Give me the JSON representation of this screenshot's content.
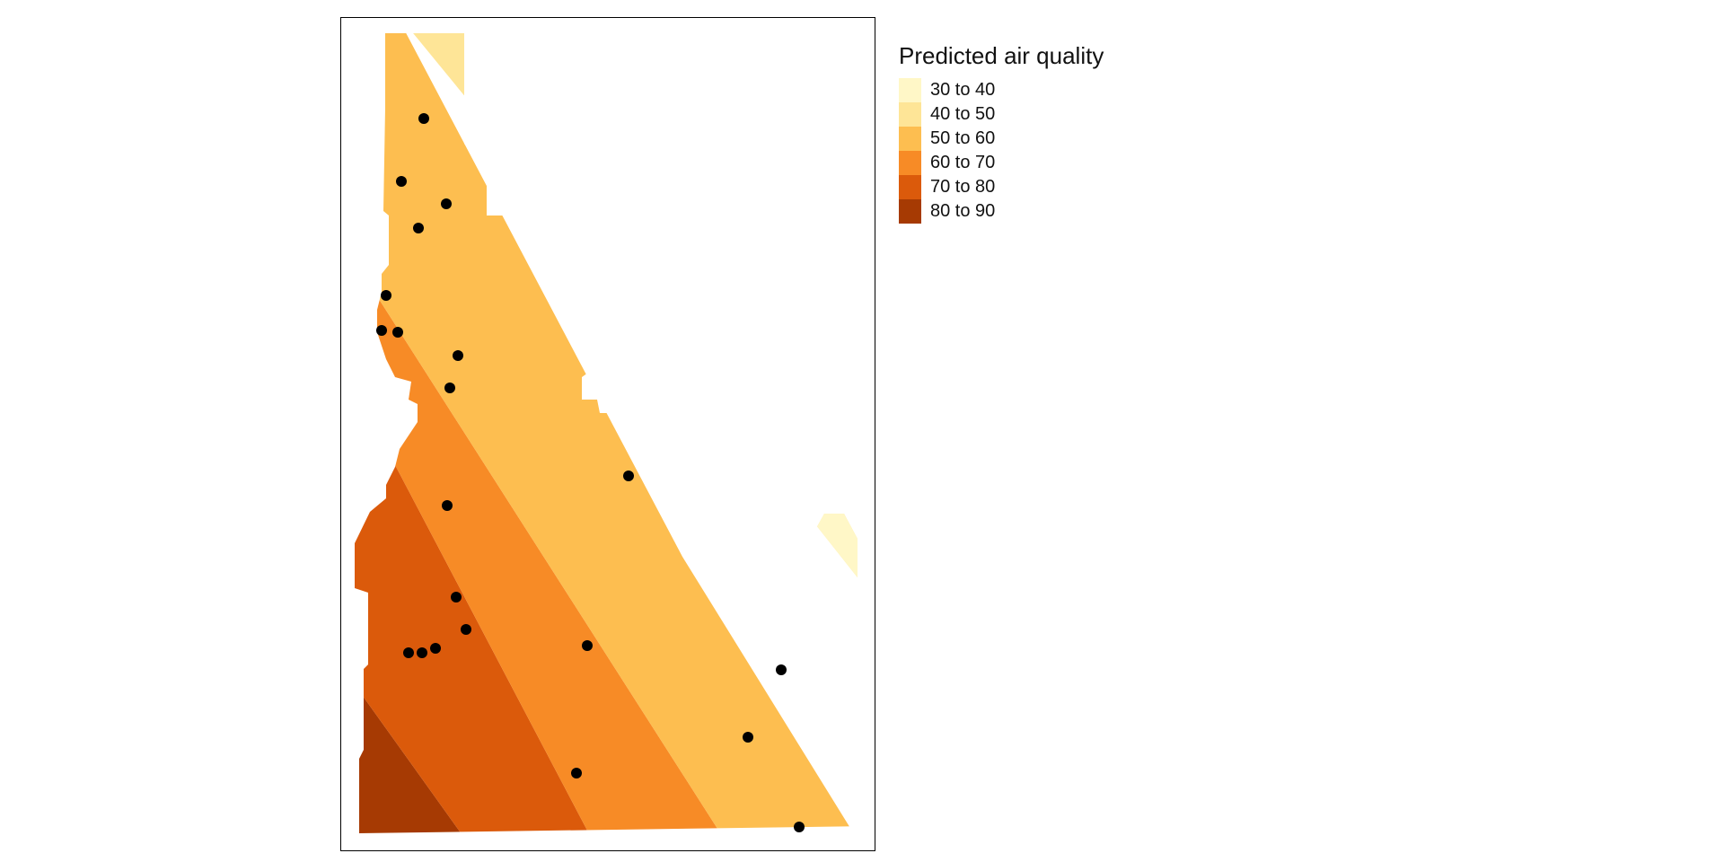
{
  "legend": {
    "title": "Predicted air quality",
    "classes": [
      {
        "label": "30 to 40",
        "color": "#FFF7C7"
      },
      {
        "label": "40 to 50",
        "color": "#FEE597"
      },
      {
        "label": "50 to 60",
        "color": "#FDBE50"
      },
      {
        "label": "60 to 70",
        "color": "#F78B26"
      },
      {
        "label": "70 to 80",
        "color": "#DB5A0B"
      },
      {
        "label": "80 to 90",
        "color": "#A63A03"
      }
    ]
  },
  "map": {
    "point_color": "#000000",
    "frame_color": "#000000"
  }
}
